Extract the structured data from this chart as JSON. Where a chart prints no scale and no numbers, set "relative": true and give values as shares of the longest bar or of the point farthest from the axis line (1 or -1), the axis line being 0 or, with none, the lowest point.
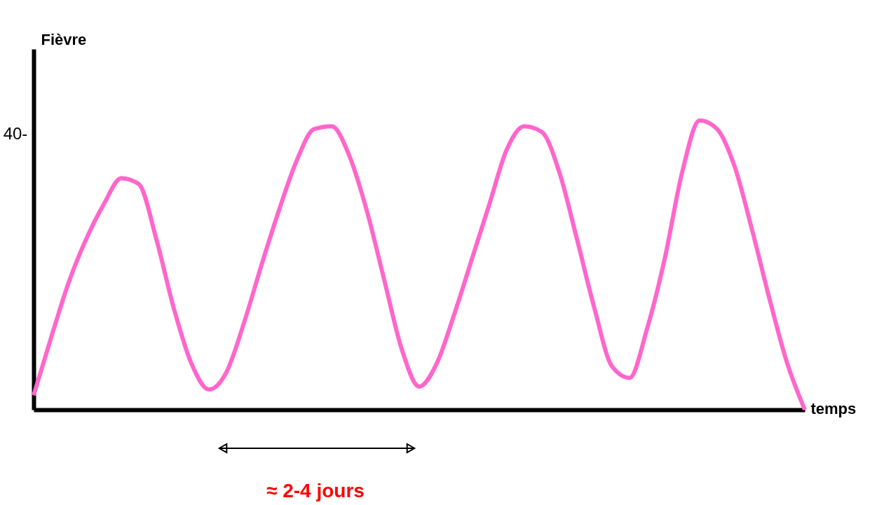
{
  "chart_data": {
    "type": "line",
    "relative": true,
    "xlabel": "temps",
    "ylabel": "Fièvre",
    "annotations": [
      "40-",
      "≈ 2-4 jours"
    ],
    "categories": [
      null,
      null,
      null,
      null,
      null,
      null,
      null,
      null,
      null,
      null,
      null,
      null,
      null,
      null,
      null,
      null,
      null,
      null,
      null,
      null,
      null,
      null,
      null,
      null,
      null,
      null,
      null,
      null,
      null,
      null,
      null,
      null,
      null,
      null,
      null,
      null,
      null,
      null,
      null,
      null,
      null,
      null,
      null,
      null,
      null
    ],
    "series": [
      {
        "color": "#ff66cc",
        "values": [
          0.05,
          0.25,
          0.44,
          0.59,
          0.71,
          0.8,
          0.78,
          0.59,
          0.35,
          0.16,
          0.07,
          0.13,
          0.3,
          0.5,
          0.69,
          0.86,
          0.97,
          0.98,
          0.88,
          0.69,
          0.45,
          0.21,
          0.08,
          0.16,
          0.33,
          0.52,
          0.71,
          0.9,
          0.98,
          0.96,
          0.82,
          0.59,
          0.35,
          0.15,
          0.11,
          0.28,
          0.52,
          0.82,
          1,
          0.97,
          0.84,
          0.62,
          0.38,
          0.16,
          0
        ]
      }
    ],
    "line_style": "solid"
  }
}
